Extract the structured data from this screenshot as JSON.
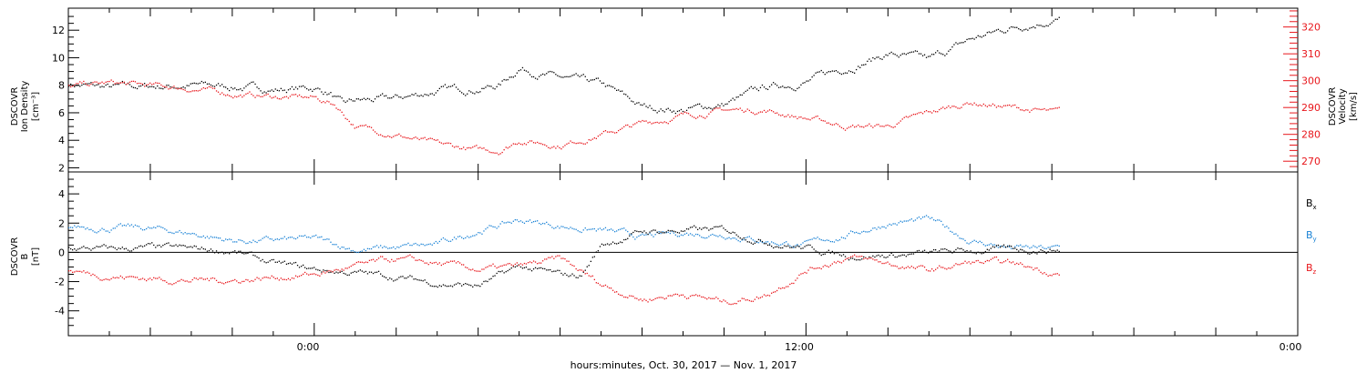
{
  "colors": {
    "black": "#000000",
    "red": "#e8161b",
    "blue": "#1b83d6"
  },
  "chart_data": [
    {
      "type": "scatter",
      "panel": "top",
      "ylabel_left": [
        "DSCOVR",
        "Ion Density",
        "[cm⁻³]"
      ],
      "ylabel_right": [
        "DSCOVR",
        "Velocity",
        "[km/s]"
      ],
      "ylim_left": [
        1.7,
        13.6
      ],
      "ylim_right": [
        266,
        327
      ],
      "yticks_left": [
        2,
        4,
        6,
        8,
        10,
        12
      ],
      "yticks_right": [
        270,
        280,
        290,
        300,
        310,
        320
      ],
      "series": [
        {
          "color": "#000000",
          "axis": "left",
          "points": [
            [
              -6.0,
              8.1
            ],
            [
              -5.0,
              7.8
            ],
            [
              -4.0,
              7.9
            ],
            [
              -3.0,
              8.0
            ],
            [
              -2.0,
              7.9
            ],
            [
              -1.0,
              7.7
            ],
            [
              0.0,
              7.8
            ],
            [
              0.4,
              7.4
            ],
            [
              0.7,
              6.5
            ],
            [
              1.0,
              6.8
            ],
            [
              2.0,
              7.0
            ],
            [
              3.0,
              7.6
            ],
            [
              4.0,
              7.8
            ],
            [
              4.5,
              8.0
            ],
            [
              5.0,
              9.3
            ],
            [
              6.0,
              8.5
            ],
            [
              7.0,
              8.0
            ],
            [
              7.5,
              7.2
            ],
            [
              8.0,
              6.4
            ],
            [
              9.0,
              6.2
            ],
            [
              10.0,
              6.6
            ],
            [
              11.0,
              7.8
            ],
            [
              12.0,
              8.3
            ],
            [
              13.0,
              9.3
            ],
            [
              14.0,
              10.3
            ],
            [
              15.0,
              9.8
            ],
            [
              16.0,
              11.3
            ],
            [
              17.0,
              12.2
            ],
            [
              18.0,
              12.8
            ],
            [
              18.2,
              12.8
            ]
          ]
        },
        {
          "color": "#e8161b",
          "axis": "right",
          "points": [
            [
              -6.0,
              298.0
            ],
            [
              -5.0,
              299.0
            ],
            [
              -4.0,
              298.0
            ],
            [
              -3.0,
              297.0
            ],
            [
              -2.0,
              295.0
            ],
            [
              -1.0,
              294.0
            ],
            [
              0.0,
              293.5
            ],
            [
              0.5,
              291.0
            ],
            [
              1.0,
              283.0
            ],
            [
              2.0,
              280.0
            ],
            [
              3.0,
              276.0
            ],
            [
              4.0,
              274.0
            ],
            [
              4.5,
              274.0
            ],
            [
              5.0,
              278.0
            ],
            [
              6.0,
              276.0
            ],
            [
              7.0,
              280.0
            ],
            [
              8.0,
              284.0
            ],
            [
              9.0,
              287.0
            ],
            [
              10.0,
              289.0
            ],
            [
              11.0,
              289.0
            ],
            [
              12.0,
              286.0
            ],
            [
              13.0,
              283.0
            ],
            [
              14.0,
              283.0
            ],
            [
              15.0,
              288.0
            ],
            [
              16.0,
              292.0
            ],
            [
              17.0,
              290.0
            ],
            [
              18.0,
              288.0
            ],
            [
              18.2,
              288.0
            ]
          ]
        }
      ]
    },
    {
      "type": "scatter",
      "panel": "bottom",
      "ylabel_left": [
        "DSCOVR",
        "B",
        "[nT]"
      ],
      "ylim": [
        -5.7,
        5.5
      ],
      "yticks": [
        -4,
        -2,
        0,
        2,
        4
      ],
      "legend": [
        "Bx",
        "By",
        "Bz"
      ],
      "series": [
        {
          "name": "Bx",
          "color": "#000000",
          "points": [
            [
              -6.0,
              0.3
            ],
            [
              -5.0,
              0.2
            ],
            [
              -4.0,
              0.3
            ],
            [
              -3.0,
              0.2
            ],
            [
              -2.0,
              0.1
            ],
            [
              -1.0,
              -0.8
            ],
            [
              0.0,
              -1.2
            ],
            [
              1.0,
              -1.4
            ],
            [
              2.0,
              -1.7
            ],
            [
              3.0,
              -2.1
            ],
            [
              4.0,
              -2.3
            ],
            [
              5.0,
              -1.0
            ],
            [
              6.0,
              -1.6
            ],
            [
              6.5,
              -1.6
            ],
            [
              7.0,
              0.5
            ],
            [
              8.0,
              1.4
            ],
            [
              9.0,
              1.5
            ],
            [
              10.0,
              1.5
            ],
            [
              11.0,
              0.8
            ],
            [
              12.0,
              0.3
            ],
            [
              13.0,
              -0.2
            ],
            [
              14.0,
              -0.2
            ],
            [
              15.0,
              -0.1
            ],
            [
              16.0,
              0.1
            ],
            [
              17.0,
              0.2
            ],
            [
              18.0,
              0.2
            ],
            [
              18.2,
              0.2
            ]
          ]
        },
        {
          "name": "By",
          "color": "#1b83d6",
          "points": [
            [
              -6.0,
              1.8
            ],
            [
              -5.0,
              1.7
            ],
            [
              -4.0,
              1.6
            ],
            [
              -3.0,
              1.3
            ],
            [
              -2.0,
              0.8
            ],
            [
              -1.0,
              0.8
            ],
            [
              0.0,
              0.9
            ],
            [
              1.0,
              0.2
            ],
            [
              2.0,
              0.3
            ],
            [
              3.0,
              0.5
            ],
            [
              4.0,
              1.5
            ],
            [
              5.0,
              2.2
            ],
            [
              6.0,
              1.8
            ],
            [
              7.0,
              1.5
            ],
            [
              8.0,
              1.0
            ],
            [
              9.0,
              1.3
            ],
            [
              10.0,
              1.3
            ],
            [
              11.0,
              0.8
            ],
            [
              12.0,
              0.5
            ],
            [
              13.0,
              1.2
            ],
            [
              14.0,
              2.0
            ],
            [
              15.0,
              2.2
            ],
            [
              16.0,
              0.8
            ],
            [
              17.0,
              0.3
            ],
            [
              18.0,
              0.2
            ],
            [
              18.2,
              0.3
            ]
          ]
        },
        {
          "name": "Bz",
          "color": "#e8161b",
          "points": [
            [
              -6.0,
              -1.3
            ],
            [
              -5.0,
              -1.6
            ],
            [
              -4.0,
              -1.8
            ],
            [
              -3.0,
              -1.9
            ],
            [
              -2.0,
              -1.9
            ],
            [
              -1.0,
              -1.7
            ],
            [
              0.0,
              -1.5
            ],
            [
              1.0,
              -1.0
            ],
            [
              2.0,
              -0.5
            ],
            [
              3.0,
              -0.8
            ],
            [
              4.0,
              -1.2
            ],
            [
              5.0,
              -1.0
            ],
            [
              6.0,
              -0.5
            ],
            [
              7.0,
              -2.2
            ],
            [
              8.0,
              -3.2
            ],
            [
              9.0,
              -2.8
            ],
            [
              10.0,
              -3.4
            ],
            [
              11.0,
              -2.9
            ],
            [
              12.0,
              -1.2
            ],
            [
              13.0,
              -0.3
            ],
            [
              14.0,
              -0.8
            ],
            [
              15.0,
              -1.3
            ],
            [
              16.0,
              -0.7
            ],
            [
              17.0,
              -0.8
            ],
            [
              18.0,
              -1.3
            ],
            [
              18.2,
              -1.5
            ]
          ]
        }
      ]
    }
  ],
  "xaxis": {
    "range_hours": [
      -6,
      24
    ],
    "major_ticks": [
      0,
      12,
      24
    ],
    "tick_labels": [
      "0:00",
      "12:00",
      "0:00"
    ],
    "label": "hours:minutes, Oct. 30, 2017 — Nov.  1, 2017"
  }
}
